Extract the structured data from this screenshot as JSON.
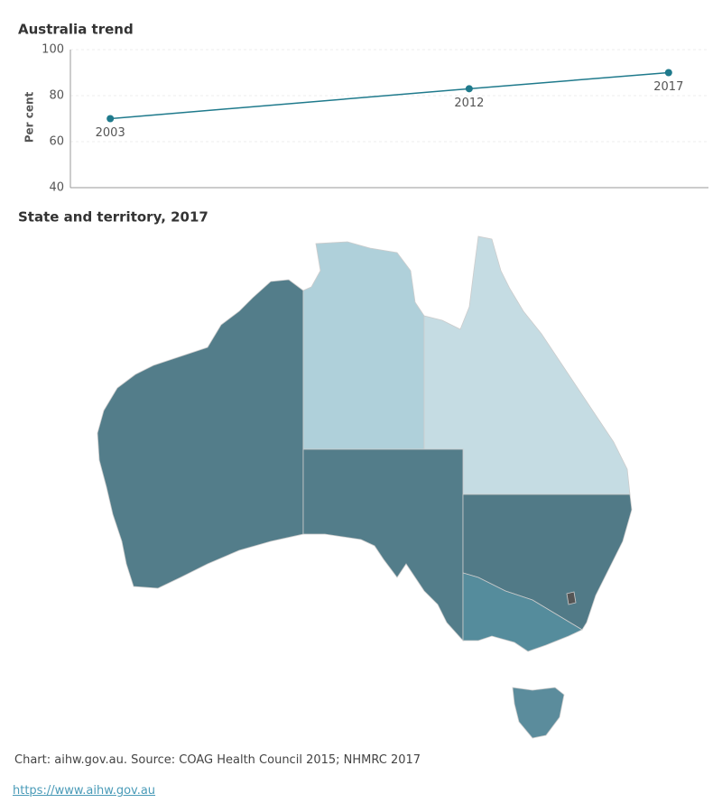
{
  "chart_data": [
    {
      "type": "line",
      "title": "Australia trend",
      "y_label": "Per cent",
      "x": [
        2003,
        2012,
        2017
      ],
      "values": [
        70,
        83,
        90
      ],
      "color": "#1f7a8c",
      "xlim": [
        2002,
        2018
      ],
      "ylim": [
        40,
        100
      ],
      "yticks": [
        40,
        60,
        80,
        100
      ],
      "grid": true
    },
    {
      "type": "map",
      "title": "State and territory, 2017",
      "colors": [
        "#537d8a",
        "#afd0da",
        "#c5dce3",
        "#537d8a",
        "#517a87",
        "#558c9c",
        "#5b8c9c",
        "#555555"
      ]
    }
  ],
  "footer": {
    "source": "Chart: aihw.gov.au. Source: COAG Health Council 2015; NHMRC 2017",
    "link": "https://www.aihw.gov.au"
  }
}
